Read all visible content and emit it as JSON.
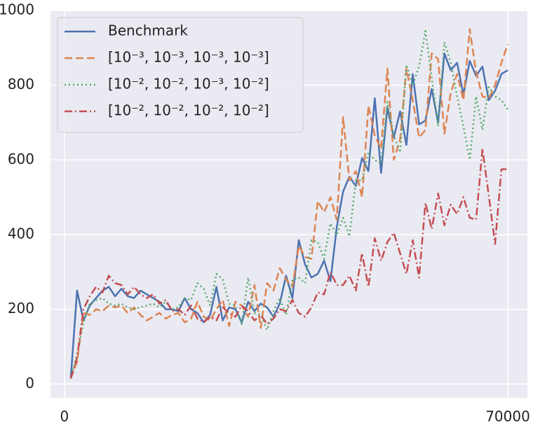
{
  "chart_data": {
    "type": "line",
    "x": [
      1000,
      2000,
      3000,
      4000,
      5000,
      6000,
      7000,
      8000,
      9000,
      10000,
      11000,
      12000,
      13000,
      14000,
      15000,
      16000,
      17000,
      18000,
      19000,
      20000,
      21000,
      22000,
      23000,
      24000,
      25000,
      26000,
      27000,
      28000,
      29000,
      30000,
      31000,
      32000,
      33000,
      34000,
      35000,
      36000,
      37000,
      38000,
      39000,
      40000,
      41000,
      42000,
      43000,
      44000,
      45000,
      46000,
      47000,
      48000,
      49000,
      50000,
      51000,
      52000,
      53000,
      54000,
      55000,
      56000,
      57000,
      58000,
      59000,
      60000,
      61000,
      62000,
      63000,
      64000,
      65000,
      66000,
      67000,
      68000,
      69000,
      70000
    ],
    "series": [
      {
        "name": "Benchmark",
        "color": "#4c72b0",
        "linestyle": "solid",
        "values": [
          15,
          250,
          170,
          210,
          230,
          250,
          260,
          235,
          255,
          235,
          230,
          250,
          240,
          230,
          220,
          200,
          200,
          195,
          230,
          200,
          190,
          165,
          185,
          260,
          170,
          205,
          200,
          165,
          220,
          195,
          215,
          205,
          180,
          215,
          290,
          230,
          385,
          320,
          285,
          295,
          330,
          275,
          420,
          515,
          555,
          530,
          605,
          570,
          765,
          565,
          740,
          660,
          730,
          640,
          830,
          695,
          705,
          790,
          700,
          885,
          840,
          860,
          775,
          865,
          825,
          850,
          760,
          785,
          830,
          840
        ]
      },
      {
        "name": "[10⁻³, 10⁻³, 10⁻³, 10⁻³]",
        "color": "#dd8452",
        "linestyle": "dashed",
        "values": [
          15,
          60,
          190,
          185,
          200,
          195,
          210,
          205,
          210,
          190,
          205,
          185,
          170,
          180,
          190,
          175,
          185,
          190,
          165,
          175,
          220,
          180,
          170,
          200,
          225,
          155,
          220,
          210,
          180,
          265,
          150,
          270,
          250,
          310,
          280,
          260,
          370,
          340,
          335,
          490,
          460,
          500,
          440,
          715,
          545,
          570,
          500,
          745,
          665,
          630,
          845,
          600,
          655,
          845,
          760,
          660,
          680,
          885,
          870,
          670,
          780,
          830,
          760,
          950,
          835,
          770,
          765,
          800,
          860,
          910
        ]
      },
      {
        "name": "[10⁻², 10⁻², 10⁻³, 10⁻²]",
        "color": "#55a868",
        "linestyle": "dotted",
        "values": [
          15,
          80,
          165,
          215,
          225,
          230,
          215,
          210,
          215,
          205,
          200,
          205,
          210,
          215,
          205,
          220,
          200,
          205,
          230,
          225,
          270,
          255,
          210,
          295,
          280,
          215,
          210,
          160,
          285,
          190,
          185,
          145,
          195,
          230,
          185,
          280,
          285,
          270,
          385,
          380,
          335,
          430,
          400,
          445,
          395,
          545,
          545,
          620,
          600,
          590,
          755,
          665,
          620,
          855,
          800,
          850,
          945,
          820,
          690,
          915,
          860,
          770,
          690,
          600,
          770,
          680,
          795,
          770,
          760,
          735
        ]
      },
      {
        "name": "[10⁻², 10⁻², 10⁻², 10⁻²]",
        "color": "#c44e52",
        "linestyle": "dashdot",
        "values": [
          15,
          70,
          200,
          235,
          260,
          245,
          290,
          270,
          265,
          240,
          260,
          240,
          230,
          240,
          215,
          225,
          195,
          200,
          185,
          210,
          175,
          165,
          180,
          170,
          205,
          190,
          180,
          210,
          195,
          170,
          185,
          160,
          175,
          200,
          195,
          225,
          190,
          180,
          205,
          245,
          240,
          300,
          265,
          265,
          290,
          250,
          350,
          260,
          390,
          330,
          380,
          405,
          350,
          295,
          385,
          285,
          485,
          415,
          510,
          425,
          480,
          455,
          500,
          445,
          440,
          630,
          505,
          375,
          575,
          575
        ]
      }
    ],
    "xlim": [
      -2200,
      73100
    ],
    "ylim": [
      -37,
      1000
    ],
    "xticks": [
      0,
      70000
    ],
    "yticks": [
      0,
      200,
      400,
      600,
      800,
      1000
    ],
    "grid": true,
    "legend": "upper left"
  }
}
